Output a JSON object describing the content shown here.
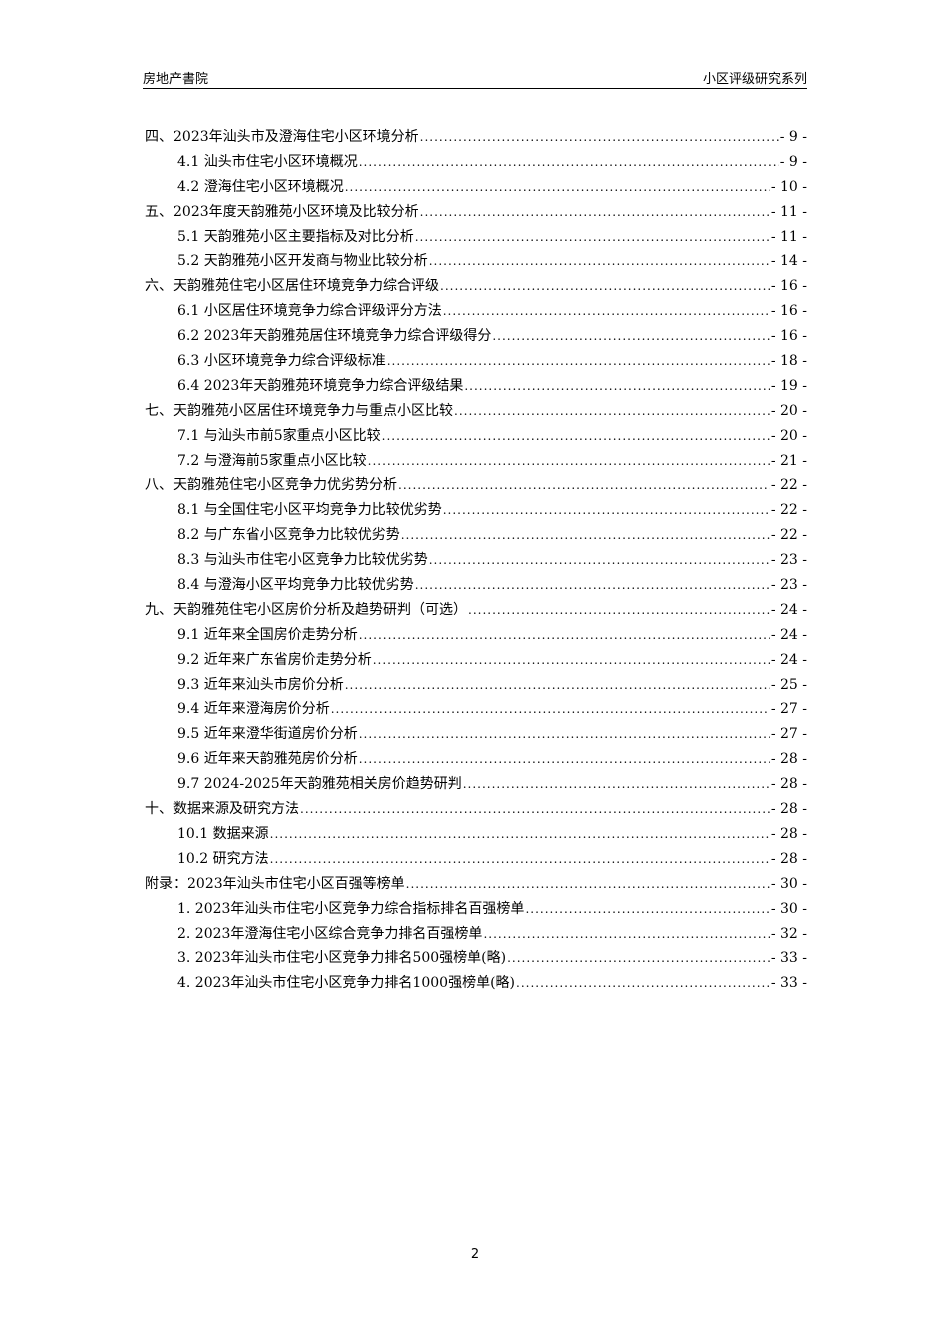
{
  "header": {
    "left": "房地产書院",
    "right": "小区评级研究系列"
  },
  "toc": [
    {
      "level": 1,
      "title": "四、2023年汕头市及澄海住宅小区环境分析",
      "page": "- 9 -"
    },
    {
      "level": 2,
      "title": "4.1 汕头市住宅小区环境概况",
      "page": "- 9 -"
    },
    {
      "level": 2,
      "title": "4.2 澄海住宅小区环境概况",
      "page": "- 10 -"
    },
    {
      "level": 1,
      "title": "五、2023年度天韵雅苑小区环境及比较分析",
      "page": "- 11 -"
    },
    {
      "level": 2,
      "title": "5.1 天韵雅苑小区主要指标及对比分析",
      "page": "- 11 -"
    },
    {
      "level": 2,
      "title": "5.2 天韵雅苑小区开发商与物业比较分析",
      "page": "- 14 -"
    },
    {
      "level": 1,
      "title": "六、天韵雅苑住宅小区居住环境竞争力综合评级",
      "page": "- 16 -"
    },
    {
      "level": 2,
      "title": "6.1 小区居住环境竞争力综合评级评分方法",
      "page": "- 16 -"
    },
    {
      "level": 2,
      "title": "6.2 2023年天韵雅苑居住环境竞争力综合评级得分",
      "page": "- 16 -"
    },
    {
      "level": 2,
      "title": "6.3 小区环境竞争力综合评级标准",
      "page": "- 18 -"
    },
    {
      "level": 2,
      "title": "6.4 2023年天韵雅苑环境竞争力综合评级结果",
      "page": "- 19 -"
    },
    {
      "level": 1,
      "title": "七、天韵雅苑小区居住环境竞争力与重点小区比较",
      "page": "- 20 -"
    },
    {
      "level": 2,
      "title": "7.1 与汕头市前5家重点小区比较",
      "page": "- 20 -"
    },
    {
      "level": 2,
      "title": "7.2 与澄海前5家重点小区比较",
      "page": "- 21 -"
    },
    {
      "level": 1,
      "title": "八、天韵雅苑住宅小区竞争力优劣势分析",
      "page": "- 22 -"
    },
    {
      "level": 2,
      "title": "8.1 与全国住宅小区平均竞争力比较优劣势",
      "page": "- 22 -"
    },
    {
      "level": 2,
      "title": "8.2 与广东省小区竞争力比较优劣势",
      "page": "- 22 -"
    },
    {
      "level": 2,
      "title": "8.3 与汕头市住宅小区竞争力比较优劣势",
      "page": "- 23 -"
    },
    {
      "level": 2,
      "title": "8.4 与澄海小区平均竞争力比较优劣势",
      "page": "- 23 -"
    },
    {
      "level": 1,
      "title": "九、天韵雅苑住宅小区房价分析及趋势研判（可选）",
      "page": "- 24 -"
    },
    {
      "level": 2,
      "title": "9.1 近年来全国房价走势分析",
      "page": "- 24 -"
    },
    {
      "level": 2,
      "title": "9.2 近年来广东省房价走势分析",
      "page": "- 24 -"
    },
    {
      "level": 2,
      "title": "9.3 近年来汕头市房价分析",
      "page": "- 25 -"
    },
    {
      "level": 2,
      "title": "9.4 近年来澄海房价分析",
      "page": "- 27 -"
    },
    {
      "level": 2,
      "title": "9.5 近年来澄华街道房价分析",
      "page": "- 27 -"
    },
    {
      "level": 2,
      "title": "9.6 近年来天韵雅苑房价分析",
      "page": "- 28 -"
    },
    {
      "level": 2,
      "title": "9.7 2024-2025年天韵雅苑相关房价趋势研判",
      "page": "- 28 -"
    },
    {
      "level": 1,
      "title": "十、数据来源及研究方法",
      "page": "- 28 -"
    },
    {
      "level": 2,
      "title": "10.1 数据来源",
      "page": "- 28 -"
    },
    {
      "level": 2,
      "title": "10.2 研究方法",
      "page": "- 28 -"
    },
    {
      "level": 1,
      "title": "附录：2023年汕头市住宅小区百强等榜单",
      "page": "- 30 -"
    },
    {
      "level": 2,
      "title": "1.  2023年汕头市住宅小区竞争力综合指标排名百强榜单",
      "page": "- 30 -"
    },
    {
      "level": 2,
      "title": "2.  2023年澄海住宅小区综合竞争力排名百强榜单",
      "page": "- 32 -"
    },
    {
      "level": 2,
      "title": "3.  2023年汕头市住宅小区竞争力排名500强榜单(略)",
      "page": "- 33 -"
    },
    {
      "level": 2,
      "title": "4.  2023年汕头市住宅小区竞争力排名1000强榜单(略)",
      "page": "- 33 -"
    }
  ],
  "footer": {
    "page_number": "2"
  }
}
